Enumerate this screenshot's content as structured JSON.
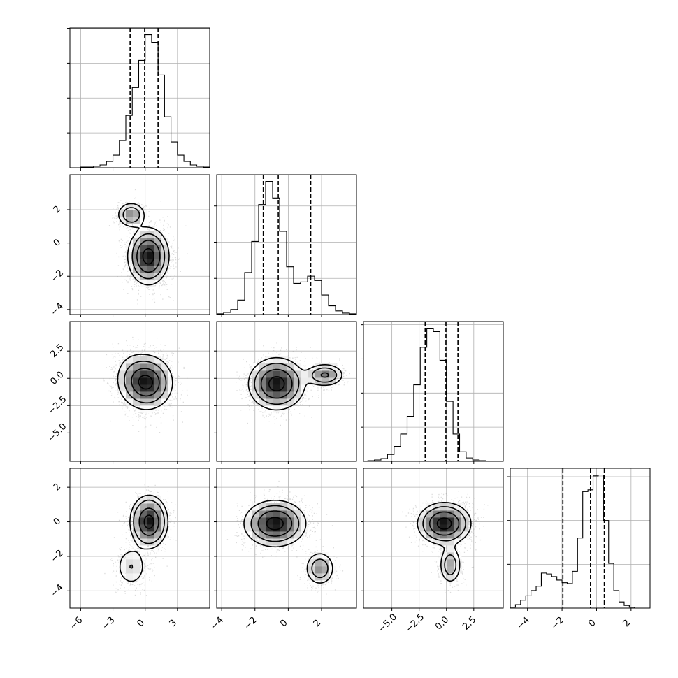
{
  "chart_data": {
    "type": "corner",
    "n_params": 4,
    "grid": true,
    "colors": {
      "line": "#000000",
      "grid": "#b0b0b0",
      "scatter": "#9a9a9a",
      "background": "#ffffff"
    },
    "parameters": [
      {
        "index": 0,
        "range": [
          -7,
          6
        ],
        "ticks": [
          -6,
          -3,
          0,
          3
        ],
        "tick_labels": [
          "−6",
          "−3",
          "0",
          "3"
        ],
        "quantiles": [
          -1.4,
          -0.05,
          1.2
        ],
        "hist": {
          "edges_start": -6,
          "bin_width": 0.6,
          "counts": [
            1,
            1,
            2,
            4,
            9,
            18,
            39,
            75,
            115,
            154,
            191,
            180,
            133,
            73,
            37,
            18,
            9,
            4,
            2,
            1,
            0
          ]
        }
      },
      {
        "index": 1,
        "range": [
          -4.3,
          4.1
        ],
        "ticks": [
          -4,
          -2,
          0,
          2
        ],
        "tick_labels": [
          "−4",
          "−2",
          "0",
          "2"
        ],
        "quantiles": [
          -1.5,
          -0.6,
          1.35
        ],
        "hist": {
          "edges_start": -4.3,
          "bin_width": 0.42,
          "counts": [
            1,
            3,
            7,
            20,
            58,
            101,
            152,
            184,
            161,
            115,
            66,
            43,
            45,
            53,
            47,
            27,
            12,
            5,
            2,
            1
          ]
        }
      },
      {
        "index": 2,
        "range": [
          -7.6,
          5.2
        ],
        "ticks": [
          -5.0,
          -2.5,
          0.0,
          2.5
        ],
        "tick_labels": [
          "−5.0",
          "−2.5",
          "0.0",
          "2.5"
        ],
        "quantiles": [
          -1.95,
          -0.05,
          1.05
        ],
        "hist": {
          "edges_start": -7.2,
          "bin_width": 0.6,
          "counts": [
            1,
            2,
            4,
            10,
            22,
            40,
            66,
            112,
            167,
            195,
            190,
            148,
            88,
            40,
            14,
            5,
            2,
            1,
            0,
            0
          ]
        }
      },
      {
        "index": 3,
        "range": [
          -5,
          3.1
        ],
        "ticks": [
          -4,
          -2,
          0,
          2
        ],
        "tick_labels": [
          "−4",
          "−2",
          "0",
          "2"
        ],
        "quantiles": [
          -1.95,
          -0.35,
          0.45
        ],
        "hist": {
          "edges_start": -5,
          "bin_width": 0.3,
          "counts": [
            1,
            4,
            9,
            14,
            20,
            25,
            40,
            39,
            36,
            32,
            29,
            28,
            42,
            80,
            133,
            135,
            151,
            152,
            100,
            51,
            20,
            7,
            3,
            1,
            0,
            0,
            0
          ]
        }
      }
    ],
    "pairs": [
      {
        "x": 0,
        "y": 1,
        "components": [
          {
            "mean": [
              0.3,
              -0.8
            ],
            "sd": [
              0.95,
              0.85
            ],
            "weight": 0.85
          },
          {
            "mean": [
              -1.3,
              1.7
            ],
            "sd": [
              0.7,
              0.4
            ],
            "weight": 0.15
          }
        ]
      },
      {
        "x": 0,
        "y": 2,
        "components": [
          {
            "mean": [
              0.2,
              -0.4
            ],
            "sd": [
              1.2,
              1.25
            ],
            "weight": 0.85
          },
          {
            "mean": [
              -1.2,
              0.2
            ],
            "sd": [
              1.0,
              1.3
            ],
            "weight": 0.15
          }
        ]
      },
      {
        "x": 1,
        "y": 2,
        "components": [
          {
            "mean": [
              -0.7,
              -0.5
            ],
            "sd": [
              0.85,
              1.2
            ],
            "weight": 0.84
          },
          {
            "mean": [
              2.2,
              0.3
            ],
            "sd": [
              0.6,
              0.55
            ],
            "weight": 0.16
          }
        ]
      },
      {
        "x": 0,
        "y": 3,
        "components": [
          {
            "mean": [
              0.35,
              0.0
            ],
            "sd": [
              0.8,
              0.7
            ],
            "weight": 0.84
          },
          {
            "mean": [
              -1.3,
              -2.6
            ],
            "sd": [
              0.8,
              0.65
            ],
            "weight": 0.16
          }
        ]
      },
      {
        "x": 1,
        "y": 3,
        "components": [
          {
            "mean": [
              -0.8,
              -0.1
            ],
            "sd": [
              0.9,
              0.65
            ],
            "weight": 0.84
          },
          {
            "mean": [
              1.9,
              -2.7
            ],
            "sd": [
              0.45,
              0.5
            ],
            "weight": 0.16
          }
        ]
      },
      {
        "x": 2,
        "y": 3,
        "components": [
          {
            "mean": [
              -0.2,
              -0.1
            ],
            "sd": [
              1.2,
              0.6
            ],
            "weight": 0.84
          },
          {
            "mean": [
              0.35,
              -2.5
            ],
            "sd": [
              0.55,
              0.6
            ],
            "weight": 0.16
          }
        ]
      }
    ]
  }
}
